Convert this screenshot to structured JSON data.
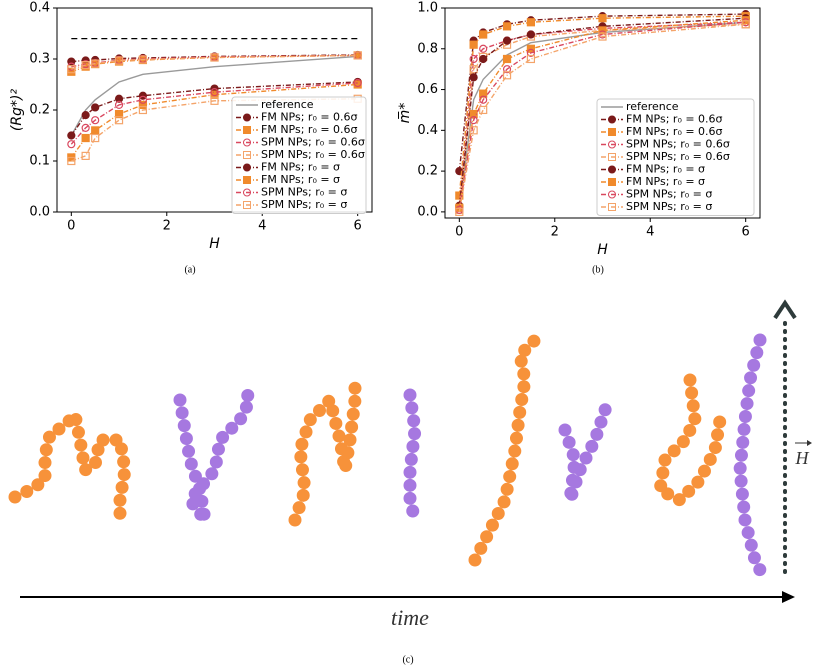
{
  "chart_data": [
    {
      "type": "line",
      "panel_label": "(a)",
      "x_label": "H",
      "y_label": "(Rg*)²",
      "xlim": [
        -0.3,
        6.3
      ],
      "ylim": [
        0,
        0.4
      ],
      "xticks": [
        0,
        2,
        4,
        6
      ],
      "yticks": [
        {
          "value": 0,
          "label": "0.0"
        },
        {
          "value": 0.1,
          "label": "0.1"
        },
        {
          "value": 0.2,
          "label": "0.2"
        },
        {
          "value": 0.3,
          "label": "0.3"
        },
        {
          "value": 0.4,
          "label": "0.4"
        }
      ],
      "hlines": [
        {
          "value": 0.34,
          "color": "#000000"
        }
      ],
      "legend": "lower right",
      "x": [
        0,
        0.3,
        0.5,
        1,
        1.5,
        3,
        6
      ],
      "series": [
        {
          "name": "reference",
          "color": "#9a9a9a",
          "marker": "none",
          "values": [
            0.15,
            0.2,
            0.22,
            0.255,
            0.27,
            0.285,
            0.305
          ]
        },
        {
          "name": "FM NPs; r₀ = 0.6σ",
          "color": "#7b1a1a",
          "marker": "circle",
          "filled": true,
          "values": [
            0.295,
            0.297,
            0.298,
            0.301,
            0.302,
            0.305,
            0.308
          ]
        },
        {
          "name": "FM NPs; r₀ = 0.6σ",
          "color": "#f08a2c",
          "marker": "square",
          "filled": true,
          "values": [
            0.275,
            0.285,
            0.29,
            0.295,
            0.298,
            0.303,
            0.307
          ]
        },
        {
          "name": "SPM NPs; r₀ = 0.6σ",
          "color": "#d9485f",
          "marker": "circle",
          "filled": false,
          "values": [
            0.285,
            0.29,
            0.292,
            0.298,
            0.3,
            0.304,
            0.307
          ]
        },
        {
          "name": "SPM NPs; r₀ = 0.6σ",
          "color": "#f4a46a",
          "marker": "square",
          "filled": false,
          "values": [
            0.28,
            0.288,
            0.291,
            0.297,
            0.299,
            0.303,
            0.307
          ]
        },
        {
          "name": "FM NPs; r₀ = σ",
          "color": "#7b1a1a",
          "marker": "circle",
          "filled": true,
          "values": [
            0.15,
            0.19,
            0.205,
            0.222,
            0.228,
            0.242,
            0.255
          ]
        },
        {
          "name": "FM NPs; r₀ = σ",
          "color": "#f08a2c",
          "marker": "square",
          "filled": true,
          "values": [
            0.107,
            0.145,
            0.16,
            0.192,
            0.21,
            0.23,
            0.25
          ]
        },
        {
          "name": "SPM NPs; r₀ = σ",
          "color": "#d9485f",
          "marker": "circle",
          "filled": false,
          "values": [
            0.133,
            0.165,
            0.18,
            0.21,
            0.22,
            0.235,
            0.253
          ]
        },
        {
          "name": "SPM NPs; r₀ = σ",
          "color": "#f4a46a",
          "marker": "square",
          "filled": false,
          "values": [
            0.1,
            0.11,
            0.145,
            0.18,
            0.2,
            0.218,
            0.222
          ]
        }
      ]
    },
    {
      "type": "line",
      "panel_label": "(b)",
      "x_label": "H",
      "y_label": "m̅*",
      "xlim": [
        -0.3,
        6.3
      ],
      "ylim": [
        -0.03,
        1.0
      ],
      "xticks": [
        0,
        2,
        4,
        6
      ],
      "yticks": [
        {
          "value": 0,
          "label": "0.0"
        },
        {
          "value": 0.2,
          "label": "0.2"
        },
        {
          "value": 0.4,
          "label": "0.4"
        },
        {
          "value": 0.6,
          "label": "0.6"
        },
        {
          "value": 0.8,
          "label": "0.8"
        },
        {
          "value": 1.0,
          "label": "1.0"
        }
      ],
      "legend": "lower right",
      "x": [
        0,
        0.3,
        0.5,
        1,
        1.5,
        3,
        6
      ],
      "series": [
        {
          "name": "reference",
          "color": "#9a9a9a",
          "marker": "none",
          "values": [
            0.02,
            0.55,
            0.65,
            0.77,
            0.83,
            0.88,
            0.93
          ]
        },
        {
          "name": "FM NPs; r₀ = 0.6σ",
          "color": "#7b1a1a",
          "marker": "circle",
          "filled": true,
          "values": [
            0.2,
            0.84,
            0.88,
            0.92,
            0.94,
            0.96,
            0.97
          ]
        },
        {
          "name": "FM NPs; r₀ = 0.6σ",
          "color": "#f08a2c",
          "marker": "square",
          "filled": true,
          "values": [
            0.08,
            0.82,
            0.87,
            0.91,
            0.93,
            0.95,
            0.96
          ]
        },
        {
          "name": "SPM NPs; r₀ = 0.6σ",
          "color": "#d9485f",
          "marker": "circle",
          "filled": false,
          "values": [
            0.02,
            0.75,
            0.8,
            0.84,
            0.87,
            0.9,
            0.93
          ]
        },
        {
          "name": "SPM NPs; r₀ = 0.6σ",
          "color": "#f4a46a",
          "marker": "square",
          "filled": false,
          "values": [
            0.01,
            0.7,
            0.76,
            0.82,
            0.86,
            0.89,
            0.92
          ]
        },
        {
          "name": "FM NPs; r₀ = σ",
          "color": "#7b1a1a",
          "marker": "circle",
          "filled": true,
          "values": [
            0.03,
            0.66,
            0.75,
            0.84,
            0.87,
            0.91,
            0.95
          ]
        },
        {
          "name": "FM NPs; r₀ = σ",
          "color": "#f08a2c",
          "marker": "square",
          "filled": true,
          "values": [
            0.02,
            0.48,
            0.58,
            0.75,
            0.8,
            0.89,
            0.94
          ]
        },
        {
          "name": "SPM NPs; r₀ = σ",
          "color": "#d9485f",
          "marker": "circle",
          "filled": false,
          "values": [
            0.01,
            0.45,
            0.55,
            0.7,
            0.78,
            0.87,
            0.93
          ]
        },
        {
          "name": "SPM NPs; r₀ = σ",
          "color": "#f4a46a",
          "marker": "square",
          "filled": false,
          "values": [
            0,
            0.4,
            0.5,
            0.67,
            0.75,
            0.86,
            0.92
          ]
        }
      ]
    }
  ],
  "panel_c": {
    "panel_label": "(c)",
    "time_label": "time",
    "field_label": "H"
  }
}
